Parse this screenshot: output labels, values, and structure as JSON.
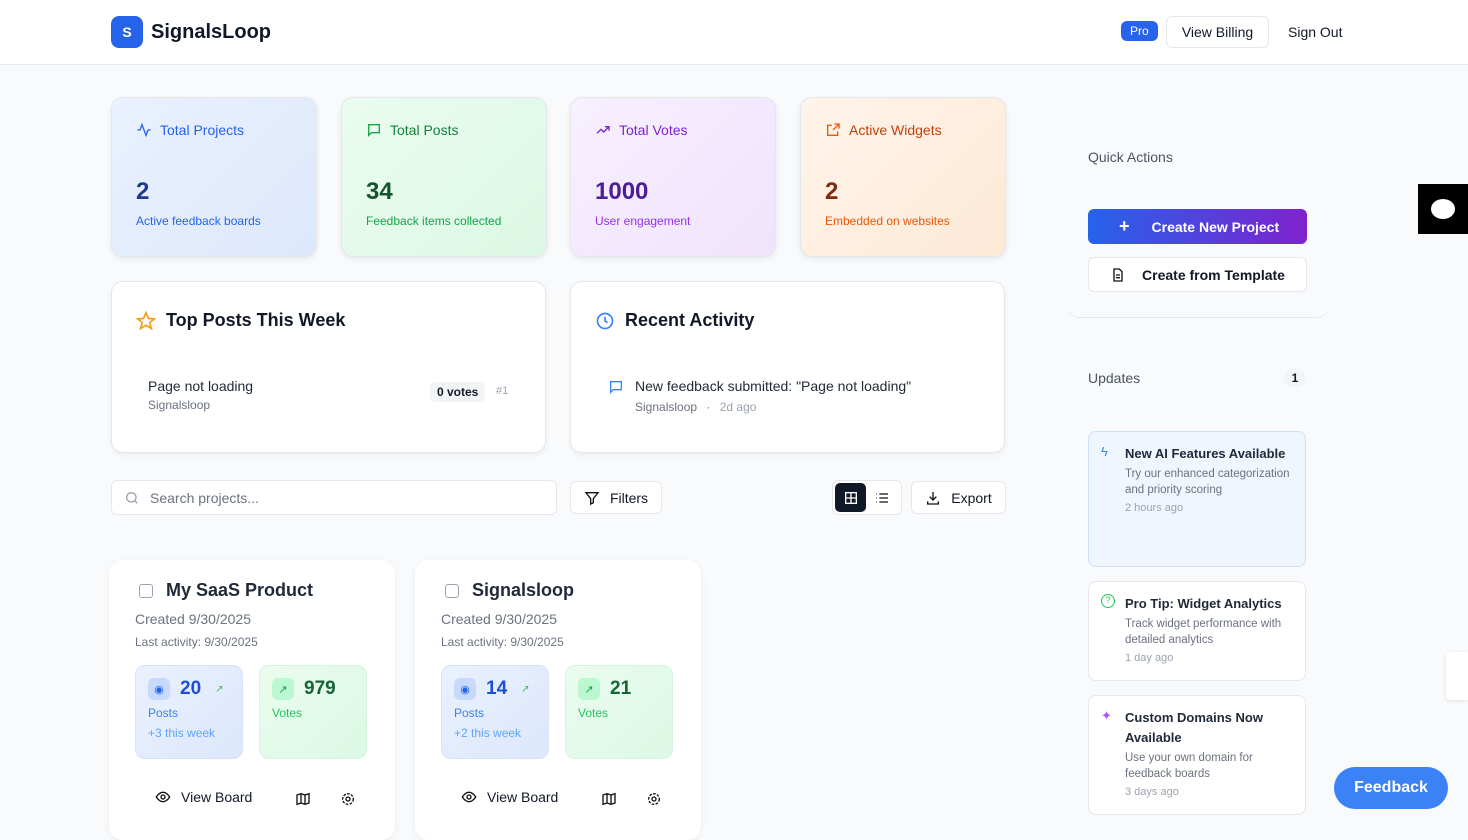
{
  "header": {
    "logo_letter": "S",
    "brand": "SignalsLoop",
    "badge": "Pro",
    "view_billing": "View Billing",
    "sign_out": "Sign Out"
  },
  "stats": [
    {
      "title": "Total Projects",
      "value": "2",
      "sub": "Active feedback boards",
      "color": "#2563eb"
    },
    {
      "title": "Total Posts",
      "value": "34",
      "sub": "Feedback items collected",
      "color": "#16a34a"
    },
    {
      "title": "Total Votes",
      "value": "1000",
      "sub": "User engagement",
      "color": "#9333ea"
    },
    {
      "title": "Active Widgets",
      "value": "2",
      "sub": "Embedded on websites",
      "color": "#ea580c"
    }
  ],
  "top_posts": {
    "title": "Top Posts This Week",
    "items": [
      {
        "title": "Page not loading",
        "project": "Signalsloop",
        "votes": "0 votes",
        "rank": "#1"
      }
    ]
  },
  "activity": {
    "title": "Recent Activity",
    "items": [
      {
        "text": "New feedback submitted: \"Page not loading\"",
        "project": "Signalsloop",
        "sep": "·",
        "time": "2d ago"
      }
    ]
  },
  "toolbar": {
    "search_placeholder": "Search projects...",
    "filters": "Filters",
    "export": "Export"
  },
  "projects": [
    {
      "name": "My SaaS Product",
      "created": "Created 9/30/2025",
      "last": "Last activity: 9/30/2025",
      "posts": "20",
      "posts_label": "Posts",
      "week": "+3 this week",
      "votes": "979",
      "votes_label": "Votes",
      "view": "View Board"
    },
    {
      "name": "Signalsloop",
      "created": "Created 9/30/2025",
      "last": "Last activity: 9/30/2025",
      "posts": "14",
      "posts_label": "Posts",
      "week": "+2 this week",
      "votes": "21",
      "votes_label": "Votes",
      "view": "View Board"
    }
  ],
  "quick": {
    "title": "Quick Actions",
    "create": "Create New Project",
    "template": "Create from Template"
  },
  "updates": {
    "title": "Updates",
    "count": "1",
    "items": [
      {
        "title": "New AI Features Available",
        "desc": "Try our enhanced categorization and priority scoring",
        "time": "2 hours ago"
      },
      {
        "title": "Pro Tip: Widget Analytics",
        "desc": "Track widget performance with detailed analytics",
        "time": "1 day ago"
      },
      {
        "title": "Custom Domains Now Available",
        "desc": "Use your own domain for feedback boards",
        "time": "3 days ago"
      }
    ]
  },
  "feedback_button": "Feedback"
}
